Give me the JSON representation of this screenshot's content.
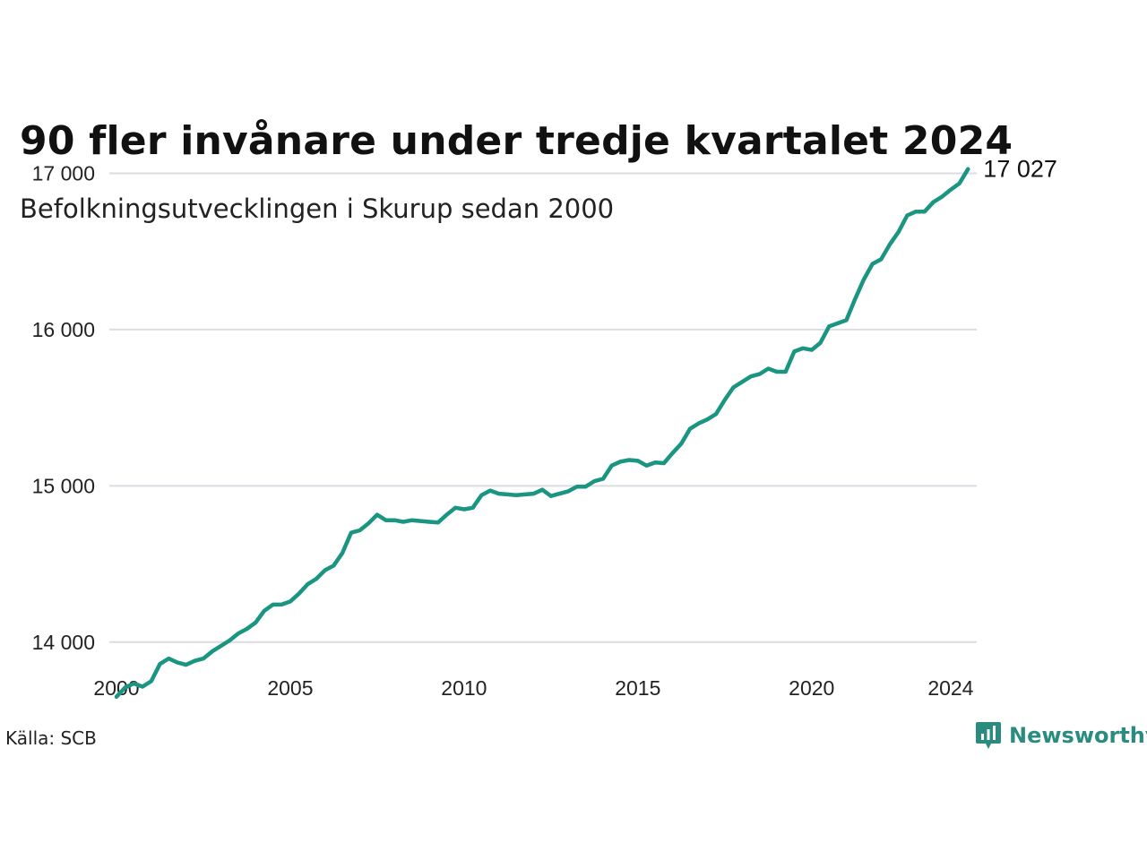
{
  "title": "90 fler invånare under tredje kvartalet 2024",
  "subtitle": "Befolkningsutvecklingen i Skurup sedan 2000",
  "source": "Källa: SCB",
  "brand": "Newsworthy",
  "colors": {
    "line": "#1a9582",
    "grid": "#dcdce2",
    "brand": "#2a8c7f"
  },
  "chart_data": {
    "type": "line",
    "title": "90 fler invånare under tredje kvartalet 2024",
    "subtitle": "Befolkningsutvecklingen i Skurup sedan 2000",
    "xlabel": "",
    "ylabel": "",
    "xlim": [
      2000,
      2024.75
    ],
    "ylim": [
      13500,
      17100
    ],
    "x_ticks": [
      2000,
      2005,
      2010,
      2015,
      2020,
      2024
    ],
    "x_tick_labels": [
      "2000",
      "2005",
      "2010",
      "2015",
      "2020",
      "2024"
    ],
    "y_ticks": [
      14000,
      15000,
      16000,
      17000
    ],
    "y_tick_labels": [
      "14 000",
      "15 000",
      "16 000",
      "17 000"
    ],
    "grid": "horizontal",
    "end_label": "17 027",
    "series": [
      {
        "x": [
          2000.0,
          2000.25,
          2000.5,
          2000.75,
          2001.0,
          2001.25,
          2001.5,
          2001.75,
          2002.0,
          2002.25,
          2002.5,
          2002.75,
          2003.0,
          2003.25,
          2003.5,
          2003.75,
          2004.0,
          2004.25,
          2004.5,
          2004.75,
          2005.0,
          2005.25,
          2005.5,
          2005.75,
          2006.0,
          2006.25,
          2006.5,
          2006.75,
          2007.0,
          2007.25,
          2007.5,
          2007.75,
          2008.0,
          2008.25,
          2008.5,
          2008.75,
          2009.0,
          2009.25,
          2009.5,
          2009.75,
          2010.0,
          2010.25,
          2010.5,
          2010.75,
          2011.0,
          2011.25,
          2011.5,
          2011.75,
          2012.0,
          2012.25,
          2012.5,
          2012.75,
          2013.0,
          2013.25,
          2013.5,
          2013.75,
          2014.0,
          2014.25,
          2014.5,
          2014.75,
          2015.0,
          2015.25,
          2015.5,
          2015.75,
          2016.0,
          2016.25,
          2016.5,
          2016.75,
          2017.0,
          2017.25,
          2017.5,
          2017.75,
          2018.0,
          2018.25,
          2018.5,
          2018.75,
          2019.0,
          2019.25,
          2019.5,
          2019.75,
          2020.0,
          2020.25,
          2020.5,
          2020.75,
          2021.0,
          2021.25,
          2021.5,
          2021.75,
          2022.0,
          2022.25,
          2022.5,
          2022.75,
          2023.0,
          2023.25,
          2023.5,
          2023.75,
          2024.0,
          2024.25,
          2024.5
        ],
        "values": [
          13650,
          13710,
          13735,
          13715,
          13750,
          13860,
          13895,
          13870,
          13855,
          13880,
          13895,
          13940,
          13975,
          14010,
          14055,
          14085,
          14125,
          14200,
          14240,
          14240,
          14260,
          14310,
          14370,
          14405,
          14460,
          14490,
          14570,
          14700,
          14715,
          14760,
          14815,
          14780,
          14780,
          14770,
          14780,
          14775,
          14770,
          14765,
          14815,
          14860,
          14850,
          14860,
          14940,
          14970,
          14950,
          14945,
          14940,
          14945,
          14950,
          14975,
          14935,
          14950,
          14965,
          14995,
          14995,
          15030,
          15045,
          15130,
          15155,
          15165,
          15160,
          15130,
          15150,
          15145,
          15210,
          15270,
          15365,
          15400,
          15425,
          15460,
          15550,
          15630,
          15665,
          15700,
          15715,
          15750,
          15730,
          15730,
          15860,
          15880,
          15870,
          15915,
          16020,
          16040,
          16060,
          16195,
          16320,
          16420,
          16450,
          16545,
          16625,
          16730,
          16755,
          16755,
          16815,
          16850,
          16895,
          16935,
          17027
        ]
      }
    ]
  }
}
